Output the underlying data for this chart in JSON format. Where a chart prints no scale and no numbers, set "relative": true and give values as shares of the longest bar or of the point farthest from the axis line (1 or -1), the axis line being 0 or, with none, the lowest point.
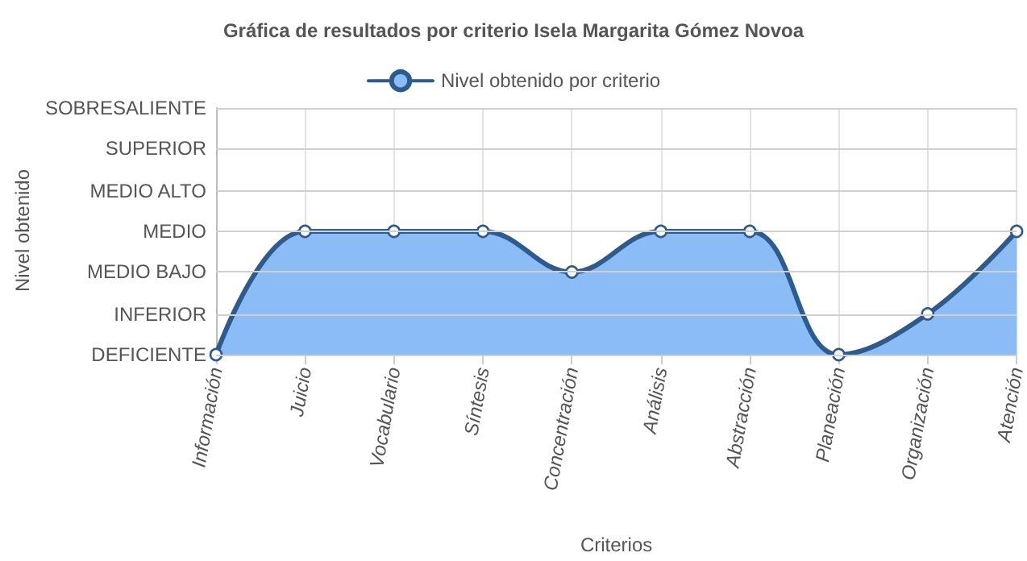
{
  "chart_data": {
    "type": "area",
    "title": "Gráfica de resultados por criterio Isela Margarita Gómez Novoa",
    "xlabel": "Criterios",
    "annotations": [
      "Nivel obtenido"
    ],
    "categories": [
      "Información",
      "Juicio",
      "Vocabulario",
      "Síntesis",
      "Concentración",
      "Análisis",
      "Abstracción",
      "Planeación",
      "Organización",
      "Atención"
    ],
    "relative": true,
    "series": [
      {
        "name": "Nivel obtenido por criterio",
        "color": "#8bbcf6",
        "values": [
          0,
          1,
          1,
          1,
          0.67,
          1,
          1,
          0,
          0.33,
          1
        ]
      }
    ],
    "ref_lines": [
      {
        "axis": "y",
        "value": 0,
        "label": "DEFICIENTE"
      },
      {
        "axis": "y",
        "value": 0.33,
        "label": "INFERIOR"
      },
      {
        "axis": "y",
        "value": 0.67,
        "label": "MEDIO BAJO"
      },
      {
        "axis": "y",
        "value": 1,
        "label": "MEDIO"
      },
      {
        "axis": "y",
        "value": 1.33,
        "label": "MEDIO ALTO"
      },
      {
        "axis": "y",
        "value": 1.67,
        "label": "SUPERIOR"
      },
      {
        "axis": "y",
        "value": 2,
        "label": "SOBRESALIENTE"
      }
    ],
    "grid": "x",
    "legend": "top",
    "marker": "circle",
    "line_style": "solid"
  }
}
